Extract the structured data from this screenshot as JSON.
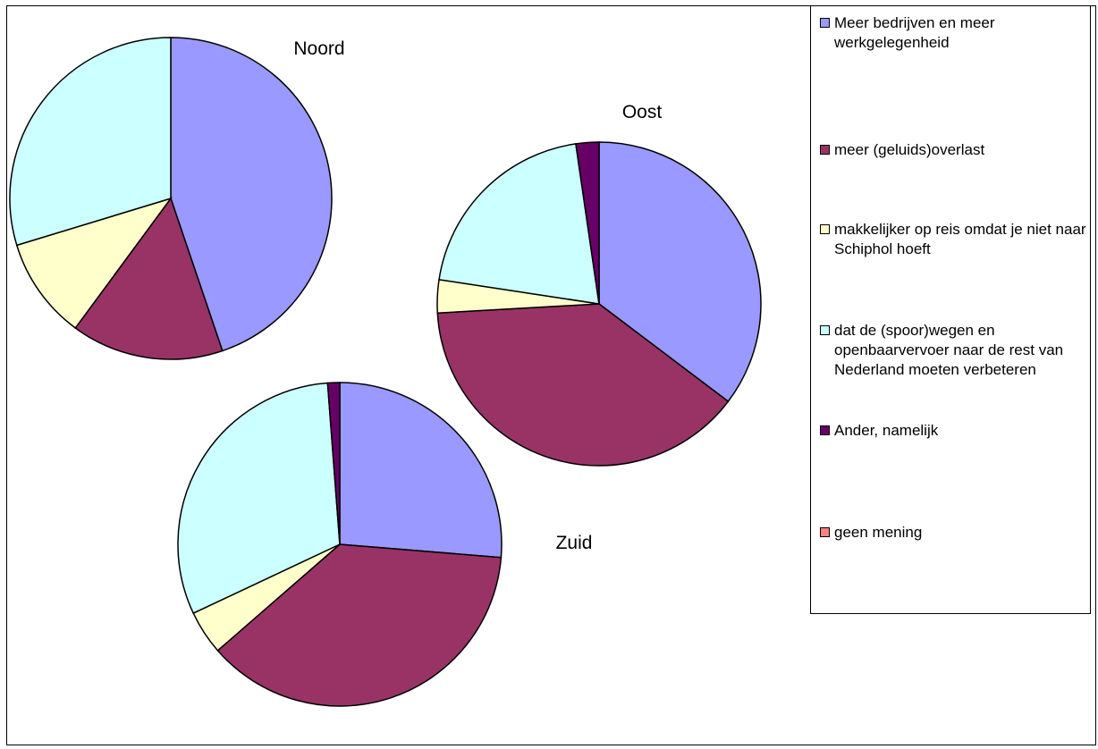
{
  "legend": [
    {
      "label": "Meer bedrijven en meer werkgelegenheid",
      "color": "#9999ff"
    },
    {
      "label": "meer (geluids)overlast",
      "color": "#993366"
    },
    {
      "label": "makkelijker op reis omdat je niet naar Schiphol hoeft",
      "color": "#ffffcc"
    },
    {
      "label": "dat de (spoor)wegen en openbaarvervoer naar de rest van Nederland moeten verbeteren",
      "color": "#ccffff"
    },
    {
      "label": "Ander, namelijk",
      "color": "#660066"
    },
    {
      "label": "geen mening",
      "color": "#ff8080"
    }
  ],
  "chart_data": [
    {
      "type": "pie",
      "title": "Noord",
      "categories": [
        "Meer bedrijven en meer werkgelegenheid",
        "meer (geluids)overlast",
        "makkelijker op reis omdat je niet naar Schiphol hoeft",
        "dat de (spoor)wegen en openbaarvervoer naar de rest van Nederland moeten verbeteren",
        "Ander, namelijk",
        "geen mening"
      ],
      "values": [
        44.8,
        15.3,
        10.2,
        29.7,
        0,
        0
      ]
    },
    {
      "type": "pie",
      "title": "Oost",
      "categories": [
        "Meer bedrijven en meer werkgelegenheid",
        "meer (geluids)overlast",
        "makkelijker op reis omdat je niet naar Schiphol hoeft",
        "dat de (spoor)wegen en openbaarvervoer naar de rest van Nederland moeten verbeteren",
        "Ander, namelijk",
        "geen mening"
      ],
      "values": [
        35.3,
        38.8,
        3.3,
        20.3,
        2.3,
        0
      ]
    },
    {
      "type": "pie",
      "title": "Zuid",
      "categories": [
        "Meer bedrijven en meer werkgelegenheid",
        "meer (geluids)overlast",
        "makkelijker op reis omdat je niet naar Schiphol hoeft",
        "dat de (spoor)wegen en openbaarvervoer naar de rest van Nederland moeten verbeteren",
        "Ander, namelijk",
        "geen mening"
      ],
      "values": [
        26.3,
        37.3,
        4.4,
        30.8,
        1.2,
        0
      ]
    }
  ]
}
